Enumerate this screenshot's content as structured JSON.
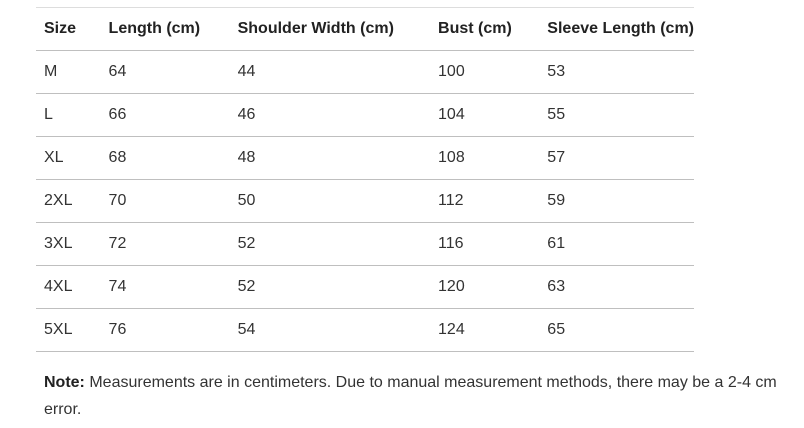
{
  "table": {
    "headers": [
      "Size",
      "Length (cm)",
      "Shoulder Width (cm)",
      "Bust (cm)",
      "Sleeve Length (cm)"
    ],
    "rows": [
      [
        "M",
        "64",
        "44",
        "100",
        "53"
      ],
      [
        "L",
        "66",
        "46",
        "104",
        "55"
      ],
      [
        "XL",
        "68",
        "48",
        "108",
        "57"
      ],
      [
        "2XL",
        "70",
        "50",
        "112",
        "59"
      ],
      [
        "3XL",
        "72",
        "52",
        "116",
        "61"
      ],
      [
        "4XL",
        "74",
        "52",
        "120",
        "63"
      ],
      [
        "5XL",
        "76",
        "54",
        "124",
        "65"
      ]
    ]
  },
  "note": {
    "label": "Note:",
    "text": " Measurements are in centimeters. Due to manual measurement methods, there may be a 2-4 cm error."
  }
}
